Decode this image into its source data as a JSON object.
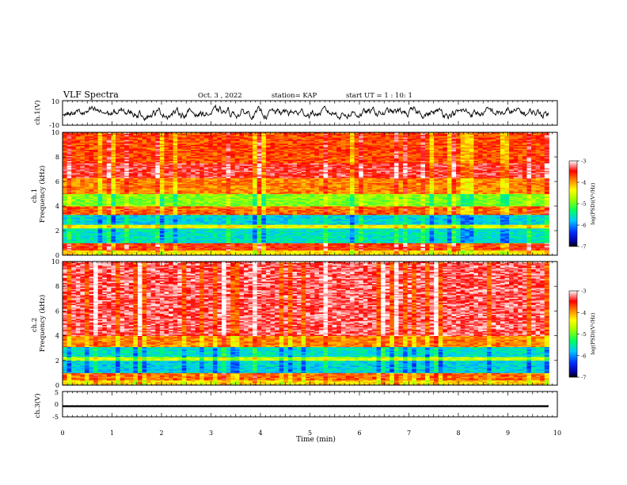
{
  "header": {
    "title": "VLF Spectra",
    "date": "Oct. 3 , 2022",
    "station": "station= KAP",
    "start_ut": "start UT =  1 : 10: 1"
  },
  "chart_data": [
    {
      "type": "line",
      "panel": "ch1-waveform",
      "ylabel": "ch.1(V)",
      "ylim": [
        -10,
        10
      ],
      "y_ticks": [
        "10",
        "-10"
      ],
      "xlim": [
        0,
        10
      ],
      "data_extent_x": [
        0,
        9.83
      ],
      "series": [
        {
          "values_range": [
            -9,
            9
          ]
        }
      ],
      "line_color": "#000000"
    },
    {
      "type": "heatmap",
      "panel": "ch1-spectrogram",
      "ylabel": "ch.1\nFrequency (kHz)",
      "ylabel_lines": [
        "ch.1",
        "Frequency (kHz)"
      ],
      "ylim": [
        0,
        10
      ],
      "y_ticks": [
        "0",
        "2",
        "4",
        "6",
        "8",
        "10"
      ],
      "xlim": [
        0,
        10
      ],
      "data_extent_x": [
        0,
        9.83
      ],
      "z_label": "log(PSD)(V²/Hz)",
      "zlim": [
        -7,
        -3
      ],
      "z_ticks": [
        "-3",
        "-4",
        "-5",
        "-6",
        "-7"
      ],
      "bands_khz": [
        {
          "from": 0.0,
          "to": 0.4,
          "level": -4.3
        },
        {
          "from": 0.4,
          "to": 1.0,
          "level": -3.6
        },
        {
          "from": 1.0,
          "to": 2.2,
          "level": -5.6
        },
        {
          "from": 2.2,
          "to": 2.5,
          "level": -4.4
        },
        {
          "from": 2.5,
          "to": 3.3,
          "level": -5.7
        },
        {
          "from": 3.3,
          "to": 4.0,
          "level": -3.8
        },
        {
          "from": 4.0,
          "to": 5.0,
          "level": -4.9
        },
        {
          "from": 5.0,
          "to": 6.3,
          "level": -3.9
        },
        {
          "from": 6.3,
          "to": 7.5,
          "level": -3.4
        },
        {
          "from": 7.5,
          "to": 10.0,
          "level": -3.7
        }
      ]
    },
    {
      "type": "heatmap",
      "panel": "ch2-spectrogram",
      "ylabel": "ch.2\nFrequency (kHz)",
      "ylabel_lines": [
        "ch.2",
        "Frequency (kHz)"
      ],
      "ylim": [
        0,
        10
      ],
      "y_ticks": [
        "0",
        "2",
        "4",
        "6",
        "8",
        "10"
      ],
      "xlim": [
        0,
        10
      ],
      "data_extent_x": [
        0,
        9.83
      ],
      "z_label": "log(PSD)(V²/Hz)",
      "zlim": [
        -7,
        -3
      ],
      "z_ticks": [
        "-3",
        "-4",
        "-5",
        "-6",
        "-7"
      ],
      "bands_khz": [
        {
          "from": 0.0,
          "to": 0.4,
          "level": -4.2
        },
        {
          "from": 0.4,
          "to": 1.0,
          "level": -3.8
        },
        {
          "from": 1.0,
          "to": 2.0,
          "level": -5.7
        },
        {
          "from": 2.0,
          "to": 2.3,
          "level": -4.6
        },
        {
          "from": 2.3,
          "to": 3.1,
          "level": -5.6
        },
        {
          "from": 3.1,
          "to": 4.0,
          "level": -3.9
        },
        {
          "from": 4.0,
          "to": 10.0,
          "level": -3.3
        }
      ]
    },
    {
      "type": "line",
      "panel": "ch3-waveform",
      "ylabel": "ch.3(V)",
      "ylim": [
        -5,
        5
      ],
      "y_ticks": [
        "5",
        "0",
        "-5"
      ],
      "xlim": [
        0,
        10
      ],
      "data_extent_x": [
        0,
        9.83
      ],
      "series": [
        {
          "values_range": [
            -1.2,
            -0.4
          ]
        }
      ],
      "line_color": "#000000",
      "xlabel": "Time (min)",
      "x_ticks": [
        "0",
        "1",
        "2",
        "3",
        "4",
        "5",
        "6",
        "7",
        "8",
        "9",
        "10"
      ]
    }
  ]
}
